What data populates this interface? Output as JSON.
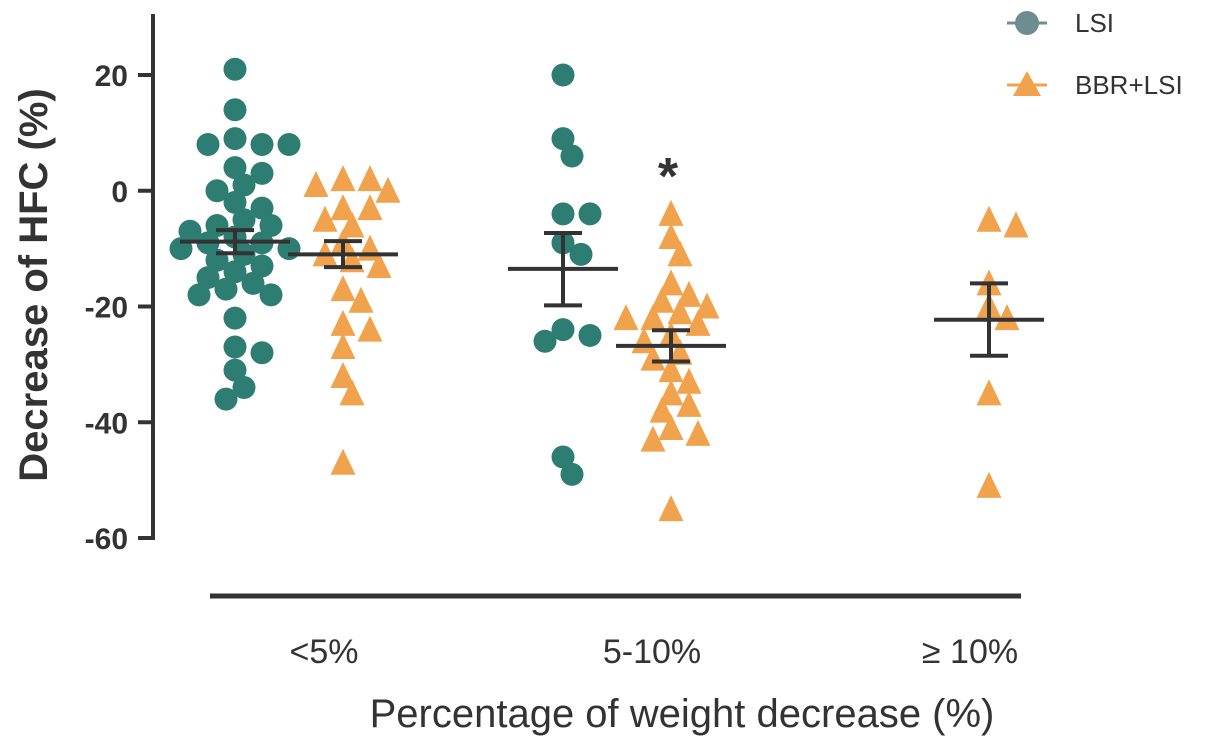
{
  "chart_data": {
    "type": "scatter",
    "ylabel": "Decrease of HFC (%)",
    "xlabel": "Percentage of weight decrease (%)",
    "ylim": [
      -60,
      30
    ],
    "yticks": [
      "20",
      "0",
      "-20",
      "-40",
      "-60"
    ],
    "ytick_values": [
      20,
      0,
      -20,
      -40,
      -60
    ],
    "categories": [
      "<5%",
      "5-10%",
      "≥ 10%"
    ],
    "legend_position": "top-right",
    "significance": [
      {
        "category": "5-10%",
        "series": "BBR+LSI",
        "label": "*"
      }
    ],
    "colors": {
      "LSI": "#2e7d72",
      "LSI_legend": "#6f8c8e",
      "BBR+LSI": "#f0a24c",
      "axis": "#333333"
    },
    "series": [
      {
        "name": "LSI",
        "marker": "circle",
        "groups": [
          {
            "category": "<5%",
            "mean": -8.8,
            "sem_low": -10.8,
            "sem_high": -6.8,
            "values": [
              21,
              14,
              9,
              8,
              8,
              8,
              4,
              3,
              1,
              0,
              -2,
              -3,
              -5,
              -6,
              -6,
              -7,
              -8,
              -9,
              -9,
              -10,
              -10,
              -11,
              -12,
              -13,
              -14,
              -15,
              -16,
              -17,
              -18,
              -18,
              -22,
              -27,
              -28,
              -31,
              -34,
              -36
            ]
          },
          {
            "category": "5-10%",
            "mean": -13.5,
            "sem_low": -19.8,
            "sem_high": -7.3,
            "values": [
              20,
              9,
              6,
              -4,
              -4,
              -9,
              -11,
              -24,
              -25,
              -26,
              -46,
              -49
            ]
          },
          {
            "category": "≥ 10%",
            "mean": null,
            "values": []
          }
        ]
      },
      {
        "name": "BBR+LSI",
        "marker": "triangle",
        "groups": [
          {
            "category": "<5%",
            "mean": -11,
            "sem_low": -13.2,
            "sem_high": -8.7,
            "values": [
              2,
              2,
              1,
              0,
              -3,
              -3,
              -5,
              -6,
              -9,
              -10,
              -11,
              -12,
              -13,
              -17,
              -19,
              -23,
              -24,
              -27,
              -32,
              -35,
              -47
            ]
          },
          {
            "category": "5-10%",
            "mean": -26.8,
            "sem_low": -29.5,
            "sem_high": -24.1,
            "values": [
              -4,
              -8,
              -11,
              -16,
              -18,
              -19,
              -20,
              -21,
              -22,
              -22,
              -23,
              -25,
              -26,
              -28,
              -29,
              -31,
              -33,
              -35,
              -37,
              -38,
              -41,
              -42,
              -43,
              -55
            ]
          },
          {
            "category": "≥ 10%",
            "mean": -22.3,
            "sem_low": -28.5,
            "sem_high": -16,
            "values": [
              -5,
              -6,
              -16,
              -20,
              -22,
              -35,
              -51
            ]
          }
        ]
      }
    ]
  }
}
